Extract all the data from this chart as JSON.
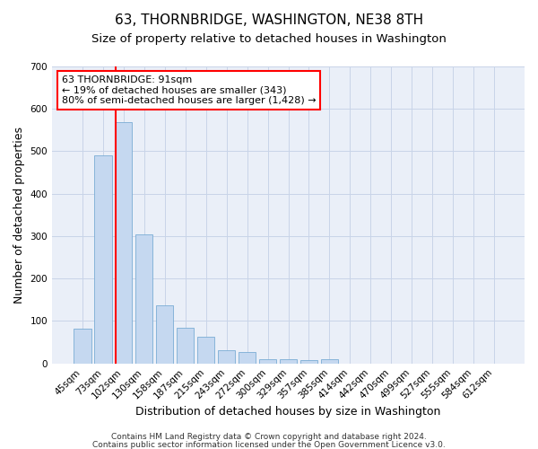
{
  "title": "63, THORNBRIDGE, WASHINGTON, NE38 8TH",
  "subtitle": "Size of property relative to detached houses in Washington",
  "xlabel": "Distribution of detached houses by size in Washington",
  "ylabel": "Number of detached properties",
  "footnote1": "Contains HM Land Registry data © Crown copyright and database right 2024.",
  "footnote2": "Contains public sector information licensed under the Open Government Licence v3.0.",
  "categories": [
    "45sqm",
    "73sqm",
    "102sqm",
    "130sqm",
    "158sqm",
    "187sqm",
    "215sqm",
    "243sqm",
    "272sqm",
    "300sqm",
    "329sqm",
    "357sqm",
    "385sqm",
    "414sqm",
    "442sqm",
    "470sqm",
    "499sqm",
    "527sqm",
    "555sqm",
    "584sqm",
    "612sqm"
  ],
  "bar_values": [
    82,
    490,
    568,
    304,
    136,
    85,
    63,
    32,
    27,
    10,
    10,
    8,
    10,
    0,
    0,
    0,
    0,
    0,
    0,
    0,
    0
  ],
  "bar_color": "#c5d8f0",
  "bar_edge_color": "#7aadd4",
  "annotation_text": "63 THORNBRIDGE: 91sqm\n← 19% of detached houses are smaller (343)\n80% of semi-detached houses are larger (1,428) →",
  "annotation_box_color": "white",
  "annotation_box_edgecolor": "red",
  "vline_color": "red",
  "vline_x_bin": 1.62,
  "ylim": [
    0,
    700
  ],
  "yticks": [
    0,
    100,
    200,
    300,
    400,
    500,
    600,
    700
  ],
  "grid_color": "#c8d4e8",
  "background_color": "#eaeff8",
  "title_fontsize": 11,
  "subtitle_fontsize": 9.5,
  "xlabel_fontsize": 9,
  "ylabel_fontsize": 9,
  "tick_fontsize": 7.5,
  "footnote_fontsize": 6.5,
  "annot_fontsize": 8
}
